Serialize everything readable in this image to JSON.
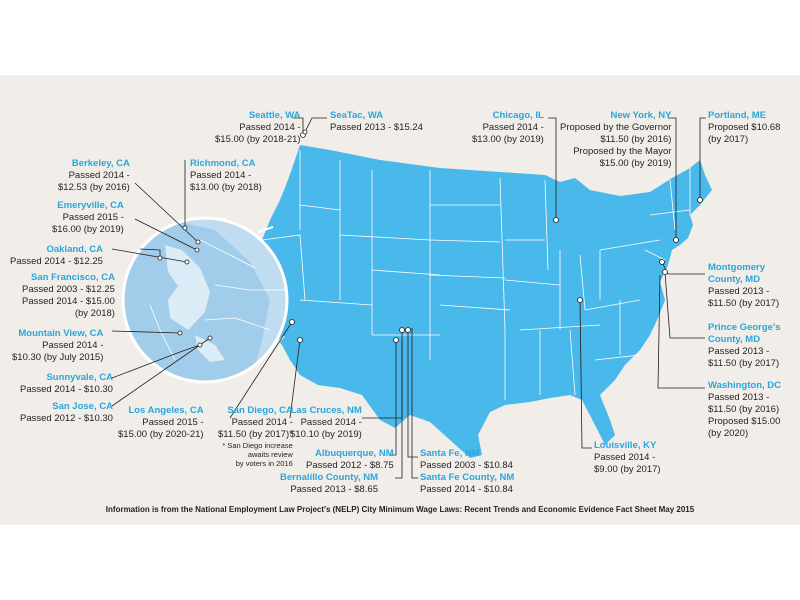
{
  "colors": {
    "background": "#f1ede9",
    "map": "#49b8ea",
    "state_lines": "#ffffff",
    "label": "#2aa6dc",
    "leader": "#231f20",
    "inset": "#bfdcf0"
  },
  "cities": {
    "seattle": {
      "name": "Seattle, WA",
      "lines": [
        "Passed 2014 -",
        "$15.00 (by 2018-21)"
      ]
    },
    "seatac": {
      "name": "SeaTac, WA",
      "lines": [
        "Passed 2013 - $15.24"
      ]
    },
    "berkeley": {
      "name": "Berkeley, CA",
      "lines": [
        "Passed 2014 -",
        "$12.53 (by 2016)"
      ]
    },
    "richmond": {
      "name": "Richmond, CA",
      "lines": [
        "Passed 2014 -",
        "$13.00 (by 2018)"
      ]
    },
    "emeryville": {
      "name": "Emeryville, CA",
      "lines": [
        "Passed 2015 -",
        "$16.00 (by 2019)"
      ]
    },
    "oakland": {
      "name": "Oakland, CA",
      "lines": [
        "Passed 2014 - $12.25"
      ]
    },
    "sanfrancisco": {
      "name": "San Francisco, CA",
      "lines": [
        "Passed 2003 - $12.25",
        "Passed 2014 - $15.00",
        "(by 2018)"
      ]
    },
    "mountainview": {
      "name": "Mountain View, CA",
      "lines": [
        "Passed 2014 -",
        "$10.30 (by July 2015)"
      ]
    },
    "sunnyvale": {
      "name": "Sunnyvale, CA",
      "lines": [
        "Passed 2014 - $10.30"
      ]
    },
    "sanjose": {
      "name": "San Jose, CA",
      "lines": [
        "Passed 2012 - $10.30"
      ]
    },
    "losangeles": {
      "name": "Los Angeles, CA",
      "lines": [
        "Passed 2015 -",
        "$15.00 (by 2020-21)"
      ]
    },
    "sandiego": {
      "name": "San Diego, CA",
      "lines": [
        "Passed 2014 -",
        "$11.50 (by 2017)*"
      ],
      "note": [
        "* San Diego increase",
        "awaits review",
        "by voters in 2016"
      ]
    },
    "lascruces": {
      "name": "Las Cruces, NM",
      "lines": [
        "Passed 2014 -",
        "$10.10 (by 2019)"
      ]
    },
    "albuquerque": {
      "name": "Albuquerque, NM",
      "lines": [
        "Passed 2012 - $8.75"
      ]
    },
    "bernalillo": {
      "name": "Bernalillo County, NM",
      "lines": [
        "Passed 2013 - $8.65"
      ]
    },
    "santafe": {
      "name": "Santa Fe, NM",
      "lines": [
        "Passed 2003 - $10.84"
      ]
    },
    "santafecounty": {
      "name": "Santa Fe County, NM",
      "lines": [
        "Passed 2014 - $10.84"
      ]
    },
    "chicago": {
      "name": "Chicago, IL",
      "lines": [
        "Passed 2014 -",
        "$13.00 (by 2019)"
      ]
    },
    "newyork": {
      "name": "New York, NY",
      "lines": [
        "Proposed by the Governor",
        "$11.50 (by 2016)",
        "Proposed by the Mayor",
        "$15.00 (by 2019)"
      ]
    },
    "portland": {
      "name": "Portland, ME",
      "lines": [
        "Proposed $10.68",
        "(by 2017)"
      ]
    },
    "montgomery": {
      "name": "Montgomery",
      "name2": "County, MD",
      "lines": [
        "Passed 2013 -",
        "$11.50 (by 2017)"
      ]
    },
    "princegeorges": {
      "name": "Prince George's",
      "name2": "County, MD",
      "lines": [
        "Passed 2013 -",
        "$11.50 (by 2017)"
      ]
    },
    "washingtondc": {
      "name": "Washington, DC",
      "lines": [
        "Passed 2013 -",
        "$11.50 (by 2016)",
        "Proposed $15.00",
        "(by 2020)"
      ]
    },
    "louisville": {
      "name": "Louisville, KY",
      "lines": [
        "Passed 2014 -",
        "$9.00 (by 2017)"
      ]
    }
  },
  "source": "Information is from the National Employment Law Project's (NELP) City Minimum Wage Laws: Recent Trends and Economic Evidence Fact Sheet May 2015"
}
